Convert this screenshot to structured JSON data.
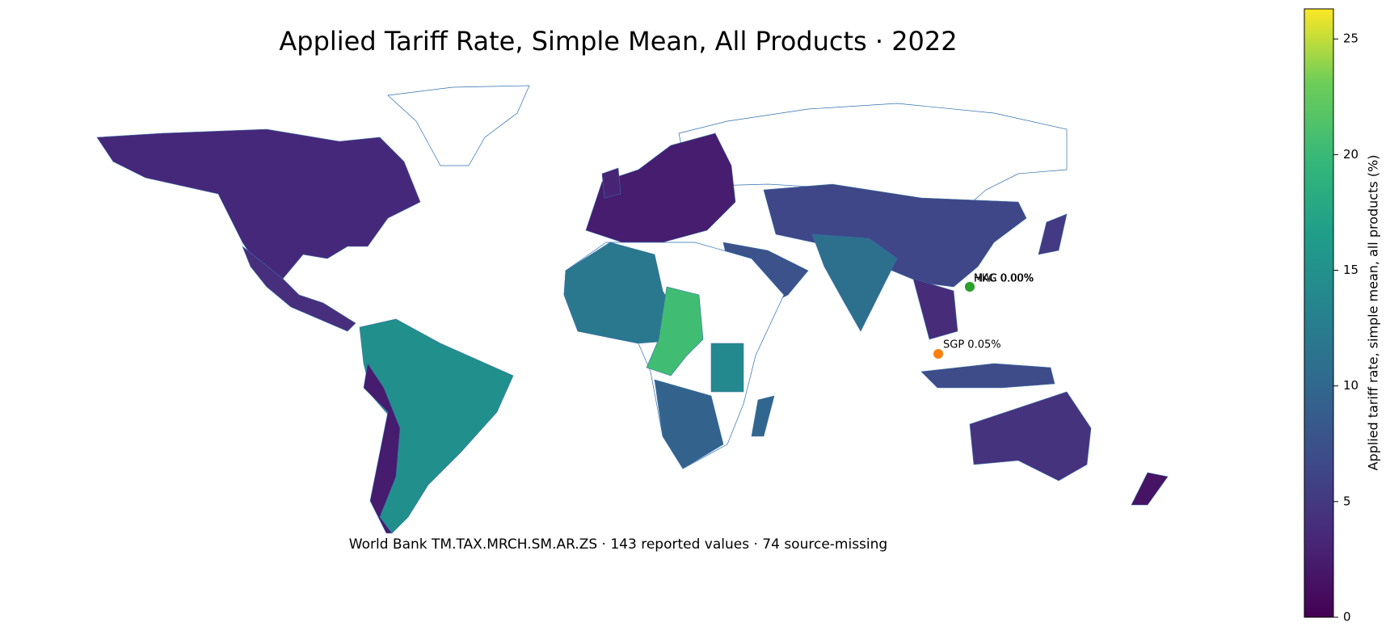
{
  "title": "Applied Tariff Rate, Simple Mean, All Products · 2022",
  "caption": "World Bank TM.TAX.MRCH.SM.AR.ZS · 143 reported values · 74 source-missing",
  "colorbar": {
    "label": "Applied tariff rate, simple mean, all products (%)",
    "lim": [
      0,
      26.3
    ],
    "ticks": [
      0,
      5,
      10,
      15,
      20,
      25
    ]
  },
  "annotations": [
    {
      "text": "HKG 0.00%",
      "color": "#2ca02c"
    },
    {
      "text": "MAC 0.00%",
      "color": "#2ca02c"
    },
    {
      "text": "SGP 0.05%",
      "color": "#ff7f0e"
    }
  ]
}
